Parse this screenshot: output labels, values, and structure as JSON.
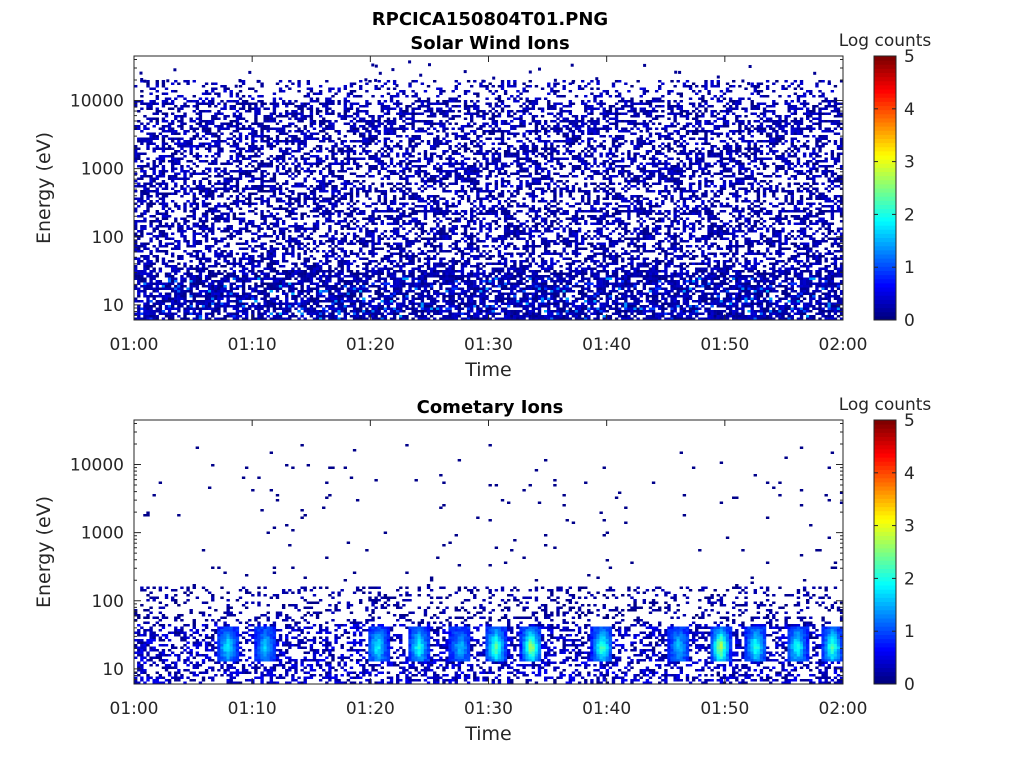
{
  "figure": {
    "title": "RPCICA150804T01.PNG"
  },
  "chart_data": [
    {
      "type": "heatmap",
      "title": "Solar Wind Ions",
      "xlabel": "Time",
      "ylabel": "Energy (eV)",
      "x_ticks": [
        "01:00",
        "01:10",
        "01:20",
        "01:30",
        "01:40",
        "01:50",
        "02:00"
      ],
      "y_ticks": [
        "10",
        "100",
        "1000",
        "10000"
      ],
      "y_scale": "log",
      "y_range": [
        6,
        45000
      ],
      "x_range": [
        "01:00",
        "02:00"
      ],
      "colorbar": {
        "label": "Log counts",
        "ticks": [
          "0",
          "1",
          "2",
          "3",
          "4",
          "5"
        ],
        "range": [
          0,
          5
        ],
        "colormap": "jet"
      },
      "description_of_values": "Sparse counts (mostly log counts ~0-0.5) spread across 6-20000 eV over the whole hour, denser at energies below 30 eV with occasional ~1-1.5 log counts near 10-20 eV.",
      "density": {
        "high_energy_occupancy": 0.48,
        "low_energy_occupancy": 0.7,
        "max_log_counts": 1.5
      }
    },
    {
      "type": "heatmap",
      "title": "Cometary Ions",
      "xlabel": "Time",
      "ylabel": "Energy (eV)",
      "x_ticks": [
        "01:00",
        "01:10",
        "01:20",
        "01:30",
        "01:40",
        "01:50",
        "02:00"
      ],
      "y_ticks": [
        "10",
        "100",
        "1000",
        "10000"
      ],
      "y_scale": "log",
      "y_range": [
        6,
        45000
      ],
      "x_range": [
        "01:00",
        "02:00"
      ],
      "colorbar": {
        "label": "Log counts",
        "ticks": [
          "0",
          "1",
          "2",
          "3",
          "4",
          "5"
        ],
        "range": [
          0,
          5
        ],
        "colormap": "jet"
      },
      "description_of_values": "Periodic bursts at ~10-40 eV reaching log counts ~2-3 roughly every 3-4 minutes; sparse isolated counts above 100 eV.",
      "bursts_minutes": [
        7.8,
        11,
        20.5,
        24,
        27.5,
        30.5,
        33.5,
        39.5,
        46,
        49.5,
        52.5,
        56,
        59
      ],
      "burst_peak_log_counts": [
        1.8,
        1.6,
        1.9,
        2.0,
        1.5,
        2.4,
        2.8,
        2.3,
        1.6,
        2.9,
        2.1,
        2.0,
        2.3
      ]
    }
  ]
}
